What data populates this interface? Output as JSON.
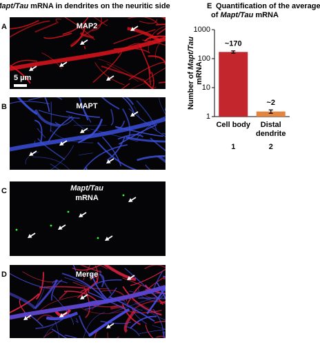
{
  "figure": {
    "title": [
      "Mapt/Tau",
      "mRNA in dendrites on the neuritic side"
    ],
    "panels": [
      {
        "letter": "A",
        "label": [
          "MAP2"
        ],
        "scale_bar": "5 µm"
      },
      {
        "letter": "B",
        "label": [
          "MAPT"
        ]
      },
      {
        "letter": "C",
        "label": [
          "Mapt/Tau",
          "mRNA"
        ]
      },
      {
        "letter": "D",
        "label": [
          "Merge"
        ]
      }
    ]
  },
  "chart_data": {
    "type": "bar",
    "panel_letter": "E",
    "title": {
      "line1": "Quantification of the average number",
      "line2": [
        "of",
        "Mapt/Tau",
        "mRNA"
      ]
    },
    "ylabel": [
      "Number of",
      "Mapt/Tau",
      "mRNA"
    ],
    "categories": [
      "Cell body",
      "Distal dendrite"
    ],
    "category_numbers": [
      1,
      2
    ],
    "values": [
      170,
      1.5
    ],
    "errors": [
      15,
      0.2
    ],
    "value_labels": [
      "~170",
      "~2"
    ],
    "colors": [
      "#c4262e",
      "#e3843f"
    ],
    "log_scale": true,
    "ylim": [
      1,
      1000
    ],
    "yticks": [
      1,
      10,
      100,
      1000
    ]
  }
}
